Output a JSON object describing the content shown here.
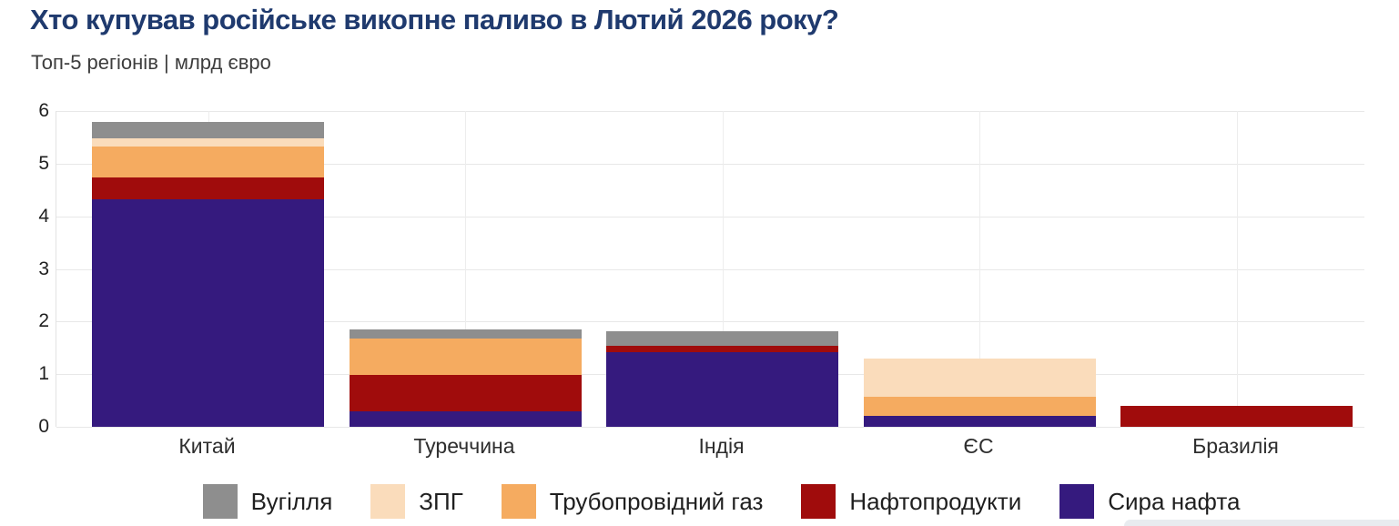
{
  "header": {
    "title": "Хто купував російське викопне паливо в Лютий 2026 року?",
    "subtitle": "Топ-5 регіонів | млрд євро"
  },
  "chart_data": {
    "type": "bar",
    "stacked": true,
    "title": "Хто купував російське викопне паливо в Лютий 2026 року?",
    "subtitle": "Топ-5 регіонів | млрд євро",
    "xlabel": "",
    "ylabel": "млрд євро",
    "ylim": [
      0,
      6
    ],
    "yticks": [
      0,
      1,
      2,
      3,
      4,
      5,
      6
    ],
    "grid": true,
    "legend_position": "bottom",
    "categories": [
      "Китай",
      "Туреччина",
      "Індія",
      "ЄС",
      "Бразилія"
    ],
    "category_keys": [
      "china",
      "turkey",
      "india",
      "eu",
      "brazil"
    ],
    "series": [
      {
        "name": "Сира нафта",
        "key": "crude-oil",
        "color": "#351a7e",
        "values": [
          4.32,
          0.29,
          1.41,
          0.2,
          0
        ]
      },
      {
        "name": "Нафтопродукти",
        "key": "oil-products",
        "color": "#a00c0c",
        "values": [
          0.41,
          0.69,
          0.13,
          0,
          0.4
        ]
      },
      {
        "name": "Трубопровідний газ",
        "key": "pipeline-gas",
        "color": "#f5ab60",
        "values": [
          0.59,
          0.7,
          0,
          0.37,
          0
        ]
      },
      {
        "name": "ЗПГ",
        "key": "lng",
        "color": "#fadcbb",
        "values": [
          0.16,
          0,
          0,
          0.73,
          0
        ]
      },
      {
        "name": "Вугілля",
        "key": "coal",
        "color": "#8e8e8e",
        "values": [
          0.32,
          0.17,
          0.27,
          0,
          0
        ]
      }
    ],
    "totals": [
      5.8,
      1.85,
      1.81,
      1.3,
      0.4
    ]
  }
}
